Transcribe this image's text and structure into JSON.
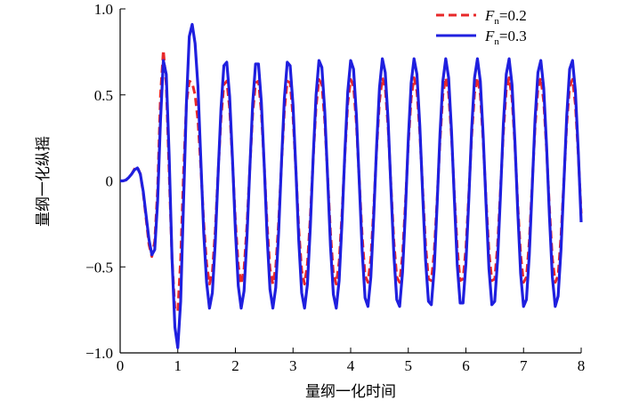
{
  "chart_data": {
    "type": "line",
    "xlabel": "量纲一化时间",
    "ylabel": "量纲一化纵摇",
    "xlim": [
      0,
      8
    ],
    "xticks": [
      0,
      1,
      2,
      3,
      4,
      5,
      6,
      7,
      8
    ],
    "ylim": [
      -1,
      1
    ],
    "yticks": [
      {
        "value": -1,
        "label": "−1.0"
      },
      {
        "value": -0.5,
        "label": "−0.5"
      },
      0,
      0.5,
      {
        "value": 1,
        "label": "1.0"
      }
    ],
    "legend": "upper right",
    "x": [
      0,
      0.05,
      0.1,
      0.15,
      0.2,
      0.25,
      0.3,
      0.35,
      0.4,
      0.45,
      0.5,
      0.55,
      0.6,
      0.65,
      0.7,
      0.75,
      0.8,
      0.85,
      0.9,
      0.95,
      1,
      1.05,
      1.1,
      1.15,
      1.2,
      1.25,
      1.3,
      1.35,
      1.4,
      1.45,
      1.5,
      1.55,
      1.6,
      1.65,
      1.7,
      1.75,
      1.8,
      1.85,
      1.9,
      1.95,
      2,
      2.05,
      2.1,
      2.15,
      2.2,
      2.25,
      2.3,
      2.35,
      2.4,
      2.45,
      2.5,
      2.55,
      2.6,
      2.65,
      2.7,
      2.75,
      2.8,
      2.85,
      2.9,
      2.95,
      3,
      3.05,
      3.1,
      3.15,
      3.2,
      3.25,
      3.3,
      3.35,
      3.4,
      3.45,
      3.5,
      3.55,
      3.6,
      3.65,
      3.7,
      3.75,
      3.8,
      3.85,
      3.9,
      3.95,
      4,
      4.05,
      4.1,
      4.15,
      4.2,
      4.25,
      4.3,
      4.35,
      4.4,
      4.45,
      4.5,
      4.55,
      4.6,
      4.65,
      4.7,
      4.75,
      4.8,
      4.85,
      4.9,
      4.95,
      5,
      5.05,
      5.1,
      5.15,
      5.2,
      5.25,
      5.3,
      5.35,
      5.4,
      5.45,
      5.5,
      5.55,
      5.6,
      5.65,
      5.7,
      5.75,
      5.8,
      5.85,
      5.9,
      5.95,
      6,
      6.05,
      6.1,
      6.15,
      6.2,
      6.25,
      6.3,
      6.35,
      6.4,
      6.45,
      6.5,
      6.55,
      6.6,
      6.65,
      6.7,
      6.75,
      6.8,
      6.85,
      6.9,
      6.95,
      7,
      7.05,
      7.1,
      7.15,
      7.2,
      7.25,
      7.3,
      7.35,
      7.4,
      7.45,
      7.5,
      7.55,
      7.6,
      7.65,
      7.7,
      7.75,
      7.8,
      7.85,
      7.9,
      7.95,
      8
    ],
    "series": [
      {
        "name": "Fn=0.2",
        "color": "#e8282a",
        "dash": true,
        "values": [
          0,
          0,
          0.005,
          0.02,
          0.04,
          0.07,
          0.08,
          0.04,
          -0.07,
          -0.22,
          -0.37,
          -0.44,
          -0.35,
          -0.05,
          0.5,
          0.76,
          0.56,
          0.05,
          -0.45,
          -0.74,
          -0.76,
          -0.45,
          0.05,
          0.45,
          0.58,
          0.57,
          0.5,
          0.35,
          0.08,
          -0.24,
          -0.48,
          -0.6,
          -0.53,
          -0.29,
          0.05,
          0.36,
          0.56,
          0.58,
          0.42,
          0.11,
          -0.23,
          -0.49,
          -0.6,
          -0.51,
          -0.26,
          0.07,
          0.39,
          0.57,
          0.58,
          0.4,
          0.09,
          -0.25,
          -0.51,
          -0.6,
          -0.5,
          -0.24,
          0.1,
          0.41,
          0.58,
          0.57,
          0.37,
          0.06,
          -0.28,
          -0.52,
          -0.6,
          -0.48,
          -0.21,
          0.13,
          0.43,
          0.59,
          0.56,
          0.35,
          0.03,
          -0.3,
          -0.54,
          -0.6,
          -0.47,
          -0.19,
          0.15,
          0.45,
          0.59,
          0.55,
          0.33,
          0,
          -0.32,
          -0.55,
          -0.59,
          -0.45,
          -0.16,
          0.18,
          0.46,
          0.6,
          0.54,
          0.31,
          -0.03,
          -0.35,
          -0.56,
          -0.59,
          -0.43,
          -0.13,
          0.21,
          0.48,
          0.6,
          0.52,
          0.28,
          -0.05,
          -0.37,
          -0.57,
          -0.58,
          -0.41,
          -0.11,
          0.23,
          0.5,
          0.6,
          0.51,
          0.26,
          -0.08,
          -0.39,
          -0.58,
          -0.57,
          -0.39,
          -0.08,
          0.26,
          0.51,
          0.6,
          0.5,
          0.23,
          -0.11,
          -0.41,
          -0.58,
          -0.57,
          -0.37,
          -0.05,
          0.28,
          0.53,
          0.6,
          0.48,
          0.21,
          -0.14,
          -0.43,
          -0.59,
          -0.56,
          -0.35,
          -0.02,
          0.31,
          0.54,
          0.6,
          0.46,
          0.18,
          -0.16,
          -0.45,
          -0.59,
          -0.55,
          -0.32,
          0,
          0.33,
          0.55,
          0.59,
          0.44,
          0.15,
          -0.19
        ]
      },
      {
        "name": "Fn=0.3",
        "color": "#1f1fdf",
        "dash": false,
        "values": [
          0,
          0,
          0.005,
          0.02,
          0.04,
          0.065,
          0.075,
          0.04,
          -0.06,
          -0.2,
          -0.34,
          -0.43,
          -0.4,
          -0.12,
          0.35,
          0.7,
          0.62,
          0.15,
          -0.45,
          -0.85,
          -0.97,
          -0.7,
          -0.12,
          0.45,
          0.84,
          0.91,
          0.8,
          0.55,
          0.12,
          -0.3,
          -0.59,
          -0.74,
          -0.65,
          -0.36,
          0.04,
          0.42,
          0.67,
          0.69,
          0.49,
          0.12,
          -0.29,
          -0.61,
          -0.74,
          -0.64,
          -0.33,
          0.07,
          0.45,
          0.68,
          0.68,
          0.46,
          0.09,
          -0.32,
          -0.63,
          -0.74,
          -0.62,
          -0.3,
          0.11,
          0.48,
          0.69,
          0.67,
          0.44,
          0.06,
          -0.35,
          -0.65,
          -0.74,
          -0.6,
          -0.27,
          0.14,
          0.5,
          0.7,
          0.66,
          0.41,
          0.02,
          -0.38,
          -0.66,
          -0.74,
          -0.58,
          -0.24,
          0.17,
          0.52,
          0.7,
          0.65,
          0.38,
          -0.01,
          -0.41,
          -0.68,
          -0.73,
          -0.56,
          -0.21,
          0.2,
          0.54,
          0.71,
          0.63,
          0.35,
          -0.05,
          -0.43,
          -0.69,
          -0.73,
          -0.53,
          -0.18,
          0.24,
          0.57,
          0.71,
          0.62,
          0.32,
          -0.08,
          -0.46,
          -0.7,
          -0.72,
          -0.51,
          -0.14,
          0.27,
          0.58,
          0.71,
          0.6,
          0.29,
          -0.11,
          -0.49,
          -0.71,
          -0.71,
          -0.48,
          -0.11,
          0.3,
          0.6,
          0.71,
          0.58,
          0.26,
          -0.14,
          -0.51,
          -0.72,
          -0.7,
          -0.46,
          -0.08,
          0.33,
          0.62,
          0.71,
          0.56,
          0.23,
          -0.18,
          -0.54,
          -0.73,
          -0.69,
          -0.43,
          -0.04,
          0.36,
          0.63,
          0.7,
          0.54,
          0.2,
          -0.21,
          -0.56,
          -0.73,
          -0.67,
          -0.4,
          -0.01,
          0.38,
          0.65,
          0.7,
          0.52,
          0.17,
          -0.24
        ]
      }
    ]
  }
}
